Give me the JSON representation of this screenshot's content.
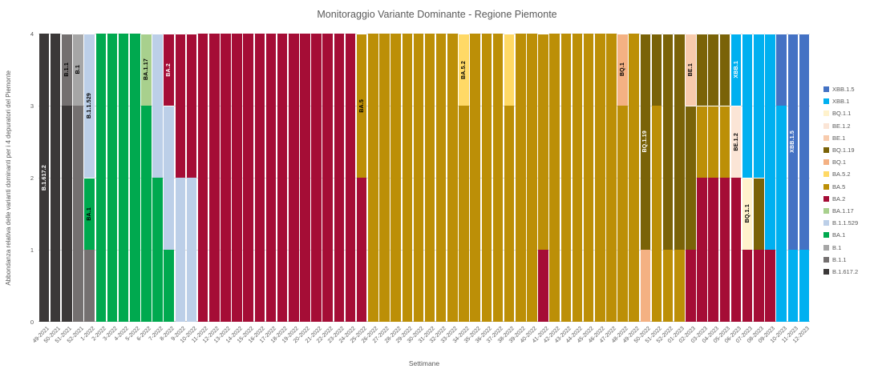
{
  "title": "Monitoraggio Variante Dominante - Regione Piemonte",
  "chart_data": {
    "type": "bar",
    "stacked": true,
    "title": "Monitoraggio Variante Dominante - Regione Piemonte",
    "xlabel": "Settimane",
    "ylabel": "Abbondanza relativa delle varianti dominanti per i 4 depuratori del Piemonte",
    "ylim": [
      0,
      4
    ],
    "yticks": [
      0,
      1,
      2,
      3,
      4
    ],
    "grid": true,
    "legend_position": "right",
    "legend": [
      "XBB.1.5",
      "XBB.1",
      "BQ.1.1",
      "BE.1.2",
      "BE.1",
      "BQ.1.19",
      "BQ.1",
      "BA.5.2",
      "BA.5",
      "BA.2",
      "BA.1.17",
      "B.1.1.529",
      "BA.1",
      "B.1",
      "B.1.1",
      "B.1.617.2"
    ],
    "colors": {
      "XBB.1.5": "#4472C4",
      "XBB.1": "#00B0F0",
      "BQ.1.1": "#FFF2CC",
      "BE.1.2": "#FBE5D6",
      "BE.1": "#F8CBAD",
      "BQ.1.19": "#7A6308",
      "BQ.1": "#F4B183",
      "BA.5.2": "#FFD966",
      "BA.5": "#BC8F07",
      "BA.2": "#A50D36",
      "BA.1.17": "#A8D08D",
      "B.1.1.529": "#BCCFE8",
      "BA.1": "#00A94F",
      "B.1": "#A6A6A6",
      "B.1.1": "#747070",
      "B.1.617.2": "#3B3838"
    },
    "categories": [
      "49-2021",
      "50-2021",
      "51-2021",
      "52-2021",
      "1-2022",
      "2-2022",
      "3-2022",
      "4-2022",
      "5-2022",
      "6-2022",
      "7-2022",
      "8-2022",
      "9-2022",
      "10-2022",
      "11-2022",
      "12-2022",
      "13-2022",
      "14-2022",
      "15-2022",
      "16-2022",
      "17-2022",
      "18-2022",
      "19-2022",
      "20-2022",
      "21-2022",
      "22-2022",
      "23-2022",
      "24-2022",
      "25-2022",
      "26-2022",
      "27-2022",
      "28-2022",
      "29-2022",
      "30-2022",
      "31-2022",
      "32-2022",
      "33-2022",
      "34-2022",
      "35-2022",
      "36-2022",
      "37-2022",
      "38-2022",
      "39-2022",
      "40-2022",
      "41-2022",
      "42-2022",
      "43-2022",
      "44-2022",
      "45-2022",
      "46-2022",
      "47-2022",
      "48-2022",
      "49-2022",
      "50-2022",
      "51-2022",
      "52-2022",
      "01-2023",
      "02-2023",
      "03-2023",
      "04-2023",
      "05-2023",
      "06-2023",
      "07-2023",
      "08-2023",
      "09-2023",
      "10-2023",
      "11-2023",
      "12-2023"
    ],
    "bars": [
      {
        "week": "49-2021",
        "segments": [
          [
            "B.1.617.2",
            4
          ]
        ],
        "labels": [
          {
            "variant": "B.1.617.2",
            "text_color": "#FFFFFF"
          }
        ]
      },
      {
        "week": "50-2021",
        "segments": [
          [
            "B.1.617.2",
            4
          ]
        ],
        "labels": []
      },
      {
        "week": "51-2021",
        "segments": [
          [
            "B.1.617.2",
            3
          ],
          [
            "B.1.1",
            1
          ]
        ],
        "labels": [
          {
            "variant": "B.1.1",
            "text_color": "#000000"
          }
        ]
      },
      {
        "week": "52-2021",
        "segments": [
          [
            "B.1.1",
            3
          ],
          [
            "B.1",
            1
          ]
        ],
        "labels": [
          {
            "variant": "B.1",
            "text_color": "#000000"
          }
        ]
      },
      {
        "week": "1-2022",
        "segments": [
          [
            "B.1.1",
            1
          ],
          [
            "BA.1",
            1
          ],
          [
            "B.1.1.529",
            2
          ]
        ],
        "labels": [
          {
            "variant": "BA.1",
            "text_color": "#000000"
          },
          {
            "variant": "B.1.1.529",
            "text_color": "#000000"
          }
        ]
      },
      {
        "week": "2-2022",
        "segments": [
          [
            "BA.1",
            4
          ]
        ],
        "labels": []
      },
      {
        "week": "3-2022",
        "segments": [
          [
            "BA.1",
            4
          ]
        ],
        "labels": []
      },
      {
        "week": "4-2022",
        "segments": [
          [
            "BA.1",
            4
          ]
        ],
        "labels": []
      },
      {
        "week": "5-2022",
        "segments": [
          [
            "BA.1",
            4
          ]
        ],
        "labels": []
      },
      {
        "week": "6-2022",
        "segments": [
          [
            "BA.1",
            3
          ],
          [
            "BA.1.17",
            1
          ]
        ],
        "labels": [
          {
            "variant": "BA.1.17",
            "text_color": "#000000"
          }
        ]
      },
      {
        "week": "7-2022",
        "segments": [
          [
            "BA.1",
            2
          ],
          [
            "B.1.1.529",
            2
          ]
        ],
        "labels": []
      },
      {
        "week": "8-2022",
        "segments": [
          [
            "BA.1",
            1
          ],
          [
            "B.1.1.529",
            2
          ],
          [
            "BA.2",
            1
          ]
        ],
        "labels": [
          {
            "variant": "BA.2",
            "text_color": "#FFFFFF"
          }
        ]
      },
      {
        "week": "9-2022",
        "segments": [
          [
            "B.1.1.529",
            2
          ],
          [
            "BA.2",
            2
          ]
        ],
        "labels": []
      },
      {
        "week": "10-2022",
        "segments": [
          [
            "B.1.1.529",
            2
          ],
          [
            "BA.2",
            2
          ]
        ],
        "labels": []
      },
      {
        "week": "11-2022",
        "segments": [
          [
            "BA.2",
            4
          ]
        ],
        "labels": []
      },
      {
        "week": "12-2022",
        "segments": [
          [
            "BA.2",
            4
          ]
        ],
        "labels": []
      },
      {
        "week": "13-2022",
        "segments": [
          [
            "BA.2",
            4
          ]
        ],
        "labels": []
      },
      {
        "week": "14-2022",
        "segments": [
          [
            "BA.2",
            4
          ]
        ],
        "labels": []
      },
      {
        "week": "15-2022",
        "segments": [
          [
            "BA.2",
            4
          ]
        ],
        "labels": []
      },
      {
        "week": "16-2022",
        "segments": [
          [
            "BA.2",
            4
          ]
        ],
        "labels": []
      },
      {
        "week": "17-2022",
        "segments": [
          [
            "BA.2",
            4
          ]
        ],
        "labels": []
      },
      {
        "week": "18-2022",
        "segments": [
          [
            "BA.2",
            4
          ]
        ],
        "labels": []
      },
      {
        "week": "19-2022",
        "segments": [
          [
            "BA.2",
            4
          ]
        ],
        "labels": []
      },
      {
        "week": "20-2022",
        "segments": [
          [
            "BA.2",
            4
          ]
        ],
        "labels": []
      },
      {
        "week": "21-2022",
        "segments": [
          [
            "BA.2",
            4
          ]
        ],
        "labels": []
      },
      {
        "week": "22-2022",
        "segments": [
          [
            "BA.2",
            4
          ]
        ],
        "labels": []
      },
      {
        "week": "23-2022",
        "segments": [
          [
            "BA.2",
            4
          ]
        ],
        "labels": []
      },
      {
        "week": "24-2022",
        "segments": [
          [
            "BA.2",
            4
          ]
        ],
        "labels": []
      },
      {
        "week": "25-2022",
        "segments": [
          [
            "BA.2",
            2
          ],
          [
            "BA.5",
            2
          ]
        ],
        "labels": [
          {
            "variant": "BA.5",
            "text_color": "#000000"
          }
        ]
      },
      {
        "week": "26-2022",
        "segments": [
          [
            "BA.5",
            4
          ]
        ],
        "labels": []
      },
      {
        "week": "27-2022",
        "segments": [
          [
            "BA.5",
            4
          ]
        ],
        "labels": []
      },
      {
        "week": "28-2022",
        "segments": [
          [
            "BA.5",
            4
          ]
        ],
        "labels": []
      },
      {
        "week": "29-2022",
        "segments": [
          [
            "BA.5",
            4
          ]
        ],
        "labels": []
      },
      {
        "week": "30-2022",
        "segments": [
          [
            "BA.5",
            4
          ]
        ],
        "labels": []
      },
      {
        "week": "31-2022",
        "segments": [
          [
            "BA.5",
            4
          ]
        ],
        "labels": []
      },
      {
        "week": "32-2022",
        "segments": [
          [
            "BA.5",
            4
          ]
        ],
        "labels": []
      },
      {
        "week": "33-2022",
        "segments": [
          [
            "BA.5",
            4
          ]
        ],
        "labels": []
      },
      {
        "week": "34-2022",
        "segments": [
          [
            "BA.5",
            3
          ],
          [
            "BA.5.2",
            1
          ]
        ],
        "labels": [
          {
            "variant": "BA.5.2",
            "text_color": "#000000"
          }
        ]
      },
      {
        "week": "35-2022",
        "segments": [
          [
            "BA.5",
            4
          ]
        ],
        "labels": []
      },
      {
        "week": "36-2022",
        "segments": [
          [
            "BA.5",
            4
          ]
        ],
        "labels": []
      },
      {
        "week": "37-2022",
        "segments": [
          [
            "BA.5",
            4
          ]
        ],
        "labels": []
      },
      {
        "week": "38-2022",
        "segments": [
          [
            "BA.5",
            3
          ],
          [
            "BA.5.2",
            1
          ]
        ],
        "labels": []
      },
      {
        "week": "39-2022",
        "segments": [
          [
            "BA.5",
            4
          ]
        ],
        "labels": []
      },
      {
        "week": "40-2022",
        "segments": [
          [
            "BA.5",
            4
          ]
        ],
        "labels": []
      },
      {
        "week": "41-2022",
        "segments": [
          [
            "BA.2",
            1
          ],
          [
            "BA.5",
            3
          ]
        ],
        "labels": []
      },
      {
        "week": "42-2022",
        "segments": [
          [
            "BA.5",
            4
          ]
        ],
        "labels": []
      },
      {
        "week": "43-2022",
        "segments": [
          [
            "BA.5",
            4
          ]
        ],
        "labels": []
      },
      {
        "week": "44-2022",
        "segments": [
          [
            "BA.5",
            4
          ]
        ],
        "labels": []
      },
      {
        "week": "45-2022",
        "segments": [
          [
            "BA.5",
            4
          ]
        ],
        "labels": []
      },
      {
        "week": "46-2022",
        "segments": [
          [
            "BA.5",
            4
          ]
        ],
        "labels": []
      },
      {
        "week": "47-2022",
        "segments": [
          [
            "BA.5",
            4
          ]
        ],
        "labels": []
      },
      {
        "week": "48-2022",
        "segments": [
          [
            "BA.5",
            3
          ],
          [
            "BQ.1",
            1
          ]
        ],
        "labels": [
          {
            "variant": "BQ.1",
            "text_color": "#000000"
          }
        ]
      },
      {
        "week": "49-2022",
        "segments": [
          [
            "BA.5",
            4
          ]
        ],
        "labels": []
      },
      {
        "week": "50-2022",
        "segments": [
          [
            "BQ.1",
            1
          ],
          [
            "BQ.1.19",
            3
          ]
        ],
        "labels": [
          {
            "variant": "BQ.1.19",
            "text_color": "#FFFFFF"
          }
        ]
      },
      {
        "week": "51-2022",
        "segments": [
          [
            "BA.5",
            3
          ],
          [
            "BQ.1.19",
            1
          ]
        ],
        "labels": []
      },
      {
        "week": "52-2022",
        "segments": [
          [
            "BA.5",
            1
          ],
          [
            "BQ.1.19",
            3
          ]
        ],
        "labels": []
      },
      {
        "week": "01-2023",
        "segments": [
          [
            "BA.5",
            1
          ],
          [
            "BQ.1.19",
            3
          ]
        ],
        "labels": []
      },
      {
        "week": "02-2023",
        "segments": [
          [
            "BA.2",
            1
          ],
          [
            "BQ.1.19",
            2
          ],
          [
            "BE.1",
            1
          ]
        ],
        "labels": [
          {
            "variant": "BE.1",
            "text_color": "#000000"
          }
        ]
      },
      {
        "week": "03-2023",
        "segments": [
          [
            "BA.2",
            2
          ],
          [
            "BA.5",
            1
          ],
          [
            "BQ.1.19",
            1
          ]
        ],
        "labels": []
      },
      {
        "week": "04-2023",
        "segments": [
          [
            "BA.2",
            2
          ],
          [
            "BA.5",
            1
          ],
          [
            "BQ.1.19",
            1
          ]
        ],
        "labels": []
      },
      {
        "week": "05-2023",
        "segments": [
          [
            "BA.2",
            2
          ],
          [
            "BA.5",
            1
          ],
          [
            "BQ.1.19",
            1
          ]
        ],
        "labels": []
      },
      {
        "week": "06-2023",
        "segments": [
          [
            "BA.2",
            2
          ],
          [
            "BE.1.2",
            1
          ],
          [
            "XBB.1",
            1
          ]
        ],
        "labels": [
          {
            "variant": "BE.1.2",
            "text_color": "#000000"
          },
          {
            "variant": "XBB.1",
            "text_color": "#FFFFFF"
          }
        ]
      },
      {
        "week": "07-2023",
        "segments": [
          [
            "BA.2",
            1
          ],
          [
            "BQ.1.1",
            1
          ],
          [
            "XBB.1",
            2
          ]
        ],
        "labels": [
          {
            "variant": "BQ.1.1",
            "text_color": "#000000"
          }
        ]
      },
      {
        "week": "08-2023",
        "segments": [
          [
            "BA.2",
            1
          ],
          [
            "BQ.1.19",
            1
          ],
          [
            "XBB.1",
            2
          ]
        ],
        "labels": []
      },
      {
        "week": "09-2023",
        "segments": [
          [
            "BA.2",
            1
          ],
          [
            "XBB.1",
            3
          ]
        ],
        "labels": []
      },
      {
        "week": "10-2023",
        "segments": [
          [
            "XBB.1",
            3
          ],
          [
            "XBB.1.5",
            1
          ]
        ],
        "labels": []
      },
      {
        "week": "11-2023",
        "segments": [
          [
            "XBB.1",
            1
          ],
          [
            "XBB.1.5",
            3
          ]
        ],
        "labels": [
          {
            "variant": "XBB.1.5",
            "text_color": "#FFFFFF"
          }
        ]
      },
      {
        "week": "12-2023",
        "segments": [
          [
            "XBB.1",
            1
          ],
          [
            "XBB.1.5",
            3
          ]
        ],
        "labels": []
      }
    ]
  }
}
